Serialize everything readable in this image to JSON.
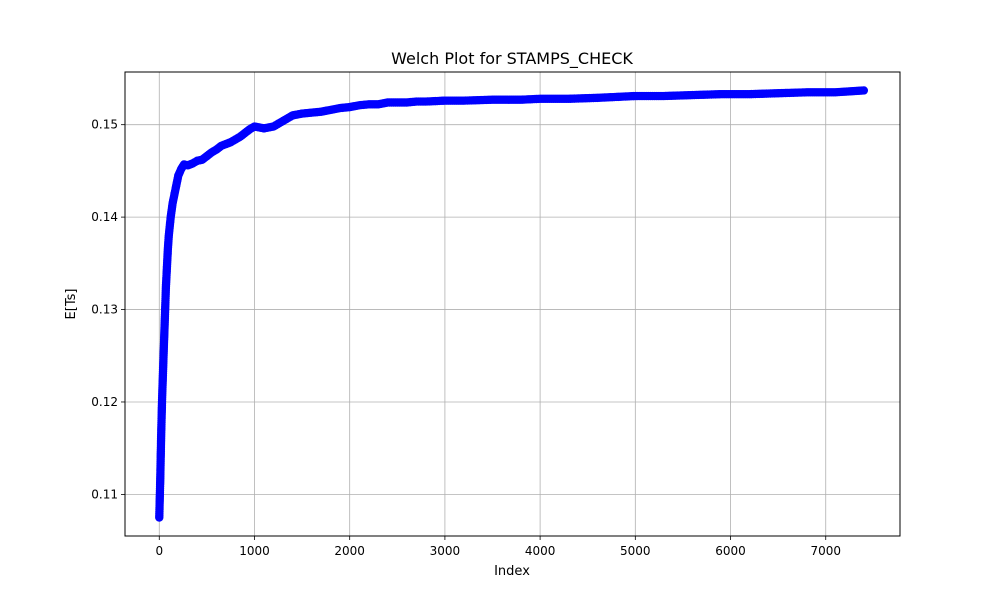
{
  "chart_data": {
    "type": "scatter",
    "title": "Welch Plot for STAMPS_CHECK",
    "xlabel": "Index",
    "ylabel": "E[Ts]",
    "xlim": [
      -360,
      7780
    ],
    "ylim": [
      0.1055,
      0.1557
    ],
    "x_ticks": [
      0,
      1000,
      2000,
      3000,
      4000,
      5000,
      6000,
      7000
    ],
    "y_ticks": [
      0.11,
      0.12,
      0.13,
      0.14,
      0.15
    ],
    "grid": true,
    "marker": "circle",
    "series": [
      {
        "color": "#0000ff",
        "x": [
          0,
          10,
          20,
          30,
          40,
          50,
          60,
          70,
          80,
          90,
          100,
          120,
          140,
          160,
          180,
          200,
          230,
          260,
          300,
          350,
          400,
          450,
          500,
          550,
          600,
          650,
          700,
          750,
          800,
          850,
          900,
          950,
          1000,
          1050,
          1100,
          1150,
          1200,
          1250,
          1300,
          1350,
          1400,
          1450,
          1500,
          1600,
          1700,
          1800,
          1900,
          2000,
          2100,
          2200,
          2300,
          2400,
          2500,
          2600,
          2700,
          2800,
          3000,
          3200,
          3500,
          3800,
          4000,
          4300,
          4600,
          5000,
          5300,
          5600,
          5900,
          6200,
          6500,
          6800,
          7100,
          7400
        ],
        "y": [
          0.1075,
          0.1115,
          0.1165,
          0.1205,
          0.1235,
          0.1265,
          0.1295,
          0.1325,
          0.1345,
          0.1365,
          0.138,
          0.14,
          0.1415,
          0.1425,
          0.1435,
          0.1445,
          0.1452,
          0.1457,
          0.1456,
          0.1458,
          0.1461,
          0.1462,
          0.1466,
          0.147,
          0.1473,
          0.1477,
          0.1479,
          0.1481,
          0.1484,
          0.1487,
          0.1491,
          0.1495,
          0.1498,
          0.1497,
          0.1496,
          0.1497,
          0.1498,
          0.1501,
          0.1504,
          0.1507,
          0.151,
          0.1511,
          0.1512,
          0.1513,
          0.1514,
          0.1516,
          0.1518,
          0.1519,
          0.1521,
          0.1522,
          0.1522,
          0.1524,
          0.1524,
          0.1524,
          0.1525,
          0.1525,
          0.1526,
          0.1526,
          0.1527,
          0.1527,
          0.1528,
          0.1528,
          0.1529,
          0.1531,
          0.1531,
          0.1532,
          0.1533,
          0.1533,
          0.1534,
          0.1535,
          0.1535,
          0.1537
        ]
      }
    ]
  }
}
